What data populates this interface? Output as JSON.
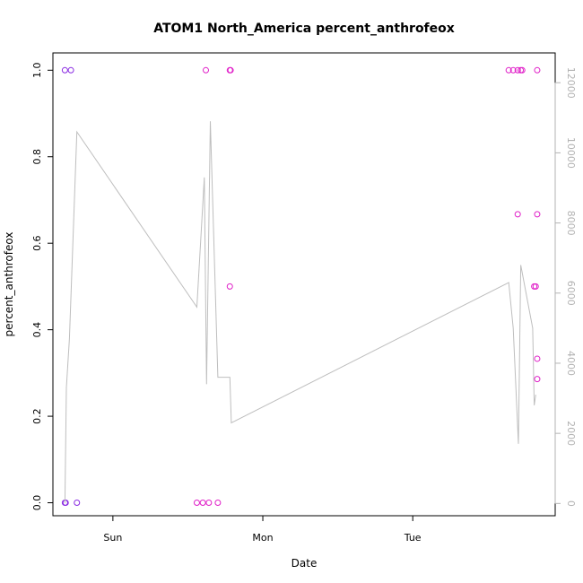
{
  "chart_data": {
    "type": "scatter",
    "title": "ATOM1 North_America percent_anthrofeox",
    "xlabel": "Date",
    "ylabel": "percent_anthrofeox",
    "x_unit": "days",
    "x_ticks": [
      {
        "label": "Sun",
        "value": 0
      },
      {
        "label": "Mon",
        "value": 1
      },
      {
        "label": "Tue",
        "value": 2
      }
    ],
    "xlim": [
      -0.4,
      2.95
    ],
    "ylim": [
      -0.03,
      1.04
    ],
    "y_ticks": [
      0.0,
      0.2,
      0.4,
      0.6,
      0.8,
      1.0
    ],
    "y_tick_labels": [
      "0.0",
      "0.2",
      "0.4",
      "0.6",
      "0.8",
      "1.0"
    ],
    "y2lim": [
      -350,
      12850
    ],
    "y2_ticks": [
      0,
      2000,
      4000,
      6000,
      8000,
      10000,
      12000
    ],
    "y2_tick_labels": [
      "0",
      "2000",
      "4000",
      "6000",
      "8000",
      "10000",
      "12000"
    ],
    "grid": false,
    "colors": {
      "early_points": "#8a2be2",
      "late_points": "#e020c8",
      "line": "#bebebe",
      "right_axis": "#b3b3b3"
    },
    "series": [
      {
        "color": "#8a2be2",
        "points": [
          {
            "x": -0.32,
            "y": 1.0
          },
          {
            "x": -0.28,
            "y": 1.0
          },
          {
            "x": -0.32,
            "y": 0.0
          },
          {
            "x": -0.315,
            "y": 0.0
          },
          {
            "x": -0.24,
            "y": 0.0
          }
        ]
      },
      {
        "color": "#e020c8",
        "points": [
          {
            "x": 0.62,
            "y": 1.0
          },
          {
            "x": 0.78,
            "y": 1.0
          },
          {
            "x": 0.785,
            "y": 1.0
          },
          {
            "x": 0.78,
            "y": 0.5
          },
          {
            "x": 0.56,
            "y": 0.0
          },
          {
            "x": 0.6,
            "y": 0.0
          },
          {
            "x": 0.64,
            "y": 0.0
          },
          {
            "x": 0.7,
            "y": 0.0
          },
          {
            "x": 2.64,
            "y": 1.0
          },
          {
            "x": 2.67,
            "y": 1.0
          },
          {
            "x": 2.7,
            "y": 1.0
          },
          {
            "x": 2.72,
            "y": 1.0
          },
          {
            "x": 2.73,
            "y": 1.0
          },
          {
            "x": 2.83,
            "y": 1.0
          },
          {
            "x": 2.7,
            "y": 0.667
          },
          {
            "x": 2.83,
            "y": 0.667
          },
          {
            "x": 2.81,
            "y": 0.5
          },
          {
            "x": 2.82,
            "y": 0.5
          },
          {
            "x": 2.83,
            "y": 0.333
          },
          {
            "x": 2.83,
            "y": 0.286
          }
        ]
      },
      {
        "color": "#bebebe",
        "axis": "right",
        "line": [
          {
            "x": -0.32,
            "y": 0
          },
          {
            "x": -0.31,
            "y": 3300
          },
          {
            "x": -0.29,
            "y": 4700
          },
          {
            "x": -0.24,
            "y": 10600
          },
          {
            "x": 0.56,
            "y": 5600
          },
          {
            "x": 0.61,
            "y": 9300
          },
          {
            "x": 0.625,
            "y": 3400
          },
          {
            "x": 0.65,
            "y": 10900
          },
          {
            "x": 0.7,
            "y": 3600
          },
          {
            "x": 0.78,
            "y": 3600
          },
          {
            "x": 0.79,
            "y": 2300
          },
          {
            "x": 2.64,
            "y": 6300
          },
          {
            "x": 2.67,
            "y": 5000
          },
          {
            "x": 2.705,
            "y": 1700
          },
          {
            "x": 2.72,
            "y": 6800
          },
          {
            "x": 2.8,
            "y": 5000
          },
          {
            "x": 2.81,
            "y": 2800
          },
          {
            "x": 2.82,
            "y": 3100
          }
        ]
      }
    ]
  }
}
